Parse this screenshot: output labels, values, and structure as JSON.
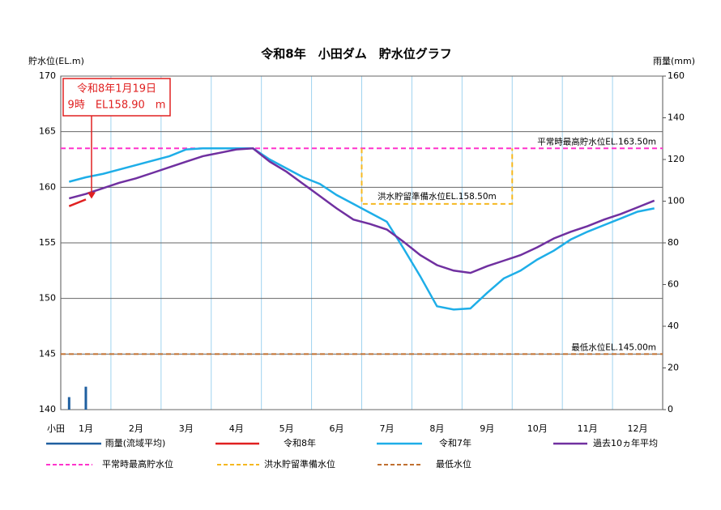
{
  "chart_data": {
    "type": "line",
    "title": "令和8年　小田ダム　貯水位グラフ",
    "y_label": "貯水位(EL.m)",
    "y2_label": "雨量(mm)",
    "x_label": "小田",
    "categories": [
      null,
      "1月",
      null,
      null,
      "2月",
      null,
      null,
      "3月",
      null,
      null,
      "4月",
      null,
      null,
      "5月",
      null,
      null,
      "6月",
      null,
      null,
      "7月",
      null,
      null,
      "8月",
      null,
      null,
      "9月",
      null,
      null,
      "10月",
      null,
      null,
      "11月",
      null,
      null,
      "12月",
      null
    ],
    "ylim": [
      140,
      170
    ],
    "yticks": [
      140,
      145,
      150,
      155,
      160,
      165,
      170
    ],
    "y2lim": [
      0,
      160
    ],
    "y2ticks": [
      0,
      20,
      40,
      60,
      80,
      100,
      120,
      140,
      160
    ],
    "grid": true,
    "series": [
      {
        "name": "雨量(流域平均)",
        "type": "bar",
        "axis": "y2",
        "color": "#1f5fa0",
        "values": [
          6,
          11,
          0,
          0,
          0,
          0,
          0,
          0,
          0,
          0,
          0,
          0,
          0,
          0,
          0,
          0,
          0,
          0,
          0,
          0,
          0,
          0,
          0,
          0,
          0,
          0,
          0,
          0,
          0,
          0,
          0,
          0,
          0,
          0,
          0,
          0
        ]
      },
      {
        "name": "令和8年",
        "color": "#e02020",
        "values": [
          158.3,
          158.9,
          null,
          null,
          null,
          null,
          null,
          null,
          null,
          null,
          null,
          null,
          null,
          null,
          null,
          null,
          null,
          null,
          null,
          null,
          null,
          null,
          null,
          null,
          null,
          null,
          null,
          null,
          null,
          null,
          null,
          null,
          null,
          null,
          null,
          null
        ]
      },
      {
        "name": "令和7年",
        "color": "#1eaee8",
        "values": [
          160.5,
          160.9,
          161.2,
          161.6,
          162.0,
          162.4,
          162.8,
          163.4,
          163.5,
          163.5,
          163.5,
          163.5,
          162.5,
          161.7,
          160.9,
          160.3,
          159.3,
          158.5,
          157.7,
          156.9,
          154.5,
          152.0,
          149.3,
          149.0,
          149.1,
          150.5,
          151.8,
          152.5,
          153.5,
          154.3,
          155.3,
          156.0,
          156.6,
          157.2,
          157.8,
          158.1
        ]
      },
      {
        "name": "過去10ヵ年平均",
        "color": "#7030a0",
        "values": [
          159.0,
          159.4,
          159.9,
          160.4,
          160.8,
          161.3,
          161.8,
          162.3,
          162.8,
          163.1,
          163.4,
          163.5,
          162.3,
          161.4,
          160.3,
          159.2,
          158.1,
          157.1,
          156.7,
          156.2,
          155.1,
          153.9,
          153.0,
          152.5,
          152.3,
          152.9,
          153.4,
          153.9,
          154.6,
          155.4,
          156.0,
          156.5,
          157.1,
          157.6,
          158.2,
          158.8
        ]
      },
      {
        "name": "洪水貯留準備水位",
        "color": "#f5b820",
        "dash": true,
        "label": "洪水貯留準備水位EL.158.50m",
        "values": [
          null,
          null,
          null,
          null,
          null,
          null,
          null,
          null,
          null,
          null,
          null,
          null,
          null,
          null,
          null,
          null,
          null,
          null,
          158.5,
          158.5,
          158.5,
          158.5,
          158.5,
          158.5,
          158.5,
          158.5,
          158.5,
          null,
          null,
          null,
          null,
          null,
          null,
          null,
          null,
          null
        ]
      }
    ],
    "reference_lines": [
      {
        "name": "平常時最高貯水位",
        "value": 163.5,
        "color": "#ff33cc",
        "label": "平常時最高貯水位EL.163.50m"
      },
      {
        "name": "最低水位",
        "value": 145,
        "color": "#c07030",
        "label": "最低水位EL.145.00m"
      }
    ],
    "annotations": [
      "令和8年1月19日",
      "9時　EL158.90　m"
    ]
  }
}
